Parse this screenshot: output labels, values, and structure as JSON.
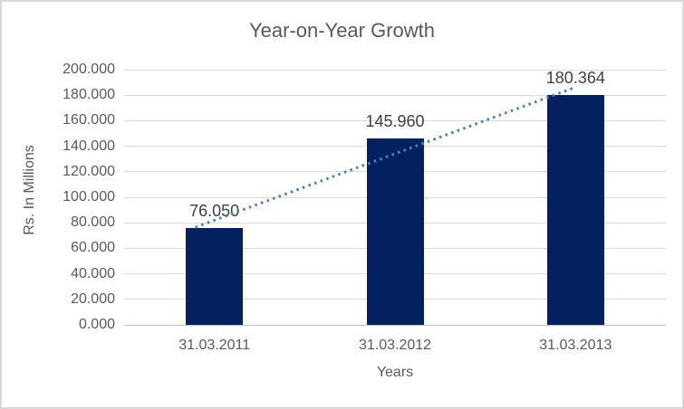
{
  "window": {
    "background": "#FFFFFF",
    "border_color": "#D9D9D9"
  },
  "chart_data": {
    "type": "bar",
    "title": "Year-on-Year Growth",
    "xlabel": "Years",
    "ylabel": "Rs. In Millions",
    "categories": [
      "31.03.2011",
      "31.03.2012",
      "31.03.2013"
    ],
    "values": [
      76.05,
      145.96,
      180.364
    ],
    "data_labels": [
      "76.050",
      "145.960",
      "180.364"
    ],
    "ylim": [
      0,
      200
    ],
    "ytick_step": 20,
    "ytick_labels": [
      "0.000",
      "20.000",
      "40.000",
      "60.000",
      "80.000",
      "100.000",
      "120.000",
      "140.000",
      "160.000",
      "180.000",
      "200.000"
    ],
    "grid": true,
    "legend": "none",
    "bar_color": "#03215E",
    "trendline": {
      "type": "linear",
      "style": "dotted",
      "color": "#4E81C0"
    },
    "title_color": "#595959",
    "axis_text_color": "#595959",
    "data_label_color": "#404040",
    "gridline_color": "#D9D9D9",
    "axisline_color": "#BFBFBF"
  }
}
